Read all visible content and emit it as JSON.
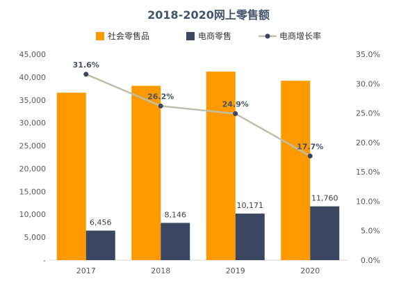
{
  "chart_data": {
    "type": "bar",
    "title": "2018-2020网上零售额",
    "categories": [
      "2017",
      "2018",
      "2019",
      "2020"
    ],
    "series": [
      {
        "name": "社会零售品",
        "kind": "bar",
        "axis": "left",
        "color": "#ff9900",
        "values": [
          36600,
          38100,
          41200,
          39200
        ],
        "labels": []
      },
      {
        "name": "电商零售",
        "kind": "bar",
        "axis": "left",
        "color": "#3b4660",
        "values": [
          6456,
          8146,
          10171,
          11760
        ],
        "labels": [
          "6,456",
          "8,146",
          "10,171",
          "11,760"
        ]
      },
      {
        "name": "电商增长率",
        "kind": "line",
        "axis": "right",
        "color": "#bdbfa9",
        "marker_color": "#3b4660",
        "values": [
          31.6,
          26.2,
          24.9,
          17.7
        ],
        "labels": [
          "31.6%",
          "26.2%",
          "24.9%",
          "17.7%"
        ]
      }
    ],
    "y_left": {
      "min": 0,
      "max": 45000,
      "ticks": [
        "-",
        "5,000",
        "10,000",
        "15,000",
        "20,000",
        "25,000",
        "30,000",
        "35,000",
        "40,000",
        "45,000"
      ]
    },
    "y_right": {
      "min": 0,
      "max": 35,
      "ticks": [
        "0.0%",
        "5.0%",
        "10.0%",
        "15.0%",
        "20.0%",
        "25.0%",
        "30.0%",
        "35.0%"
      ]
    },
    "grid": false,
    "legend_position": "top"
  }
}
